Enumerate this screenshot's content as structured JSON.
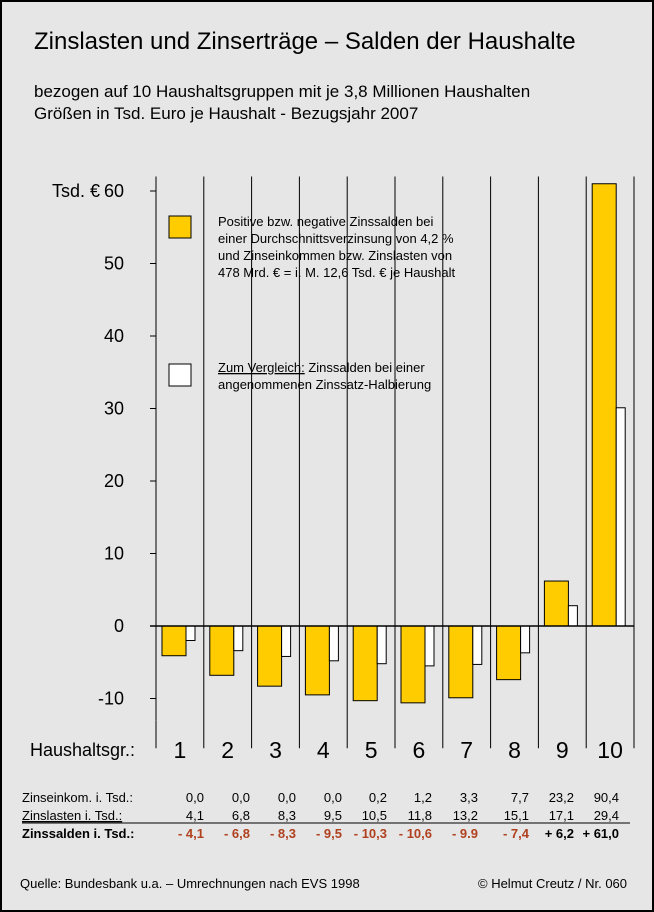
{
  "title": "Zinslasten und Zinserträge – Salden der Haushalte",
  "subtitle1": "bezogen auf 10 Haushaltsgruppen mit je 3,8 Millionen Haushalten",
  "subtitle2": "Größen in Tsd. Euro je Haushalt - Bezugsjahr 2007",
  "chart_data": {
    "type": "bar",
    "title": "Zinslasten und Zinserträge – Salden der Haushalte",
    "ylabel": "Tsd. €",
    "xlabel": "Haushaltsgr.:",
    "categories": [
      "1",
      "2",
      "3",
      "4",
      "5",
      "6",
      "7",
      "8",
      "9",
      "10"
    ],
    "ylim": [
      -13,
      62
    ],
    "yticks": [
      -10,
      0,
      10,
      20,
      30,
      40,
      50,
      60
    ],
    "ytick_labels": [
      "-10",
      "0",
      "10",
      "20",
      "30",
      "40",
      "50",
      "60"
    ],
    "series": [
      {
        "values": [
          -4.1,
          -6.8,
          -8.3,
          -9.5,
          -10.3,
          -10.6,
          -9.9,
          -7.4,
          6.2,
          61.0
        ],
        "color": "#ffcc00"
      },
      {
        "values": [
          -2.0,
          -3.4,
          -4.2,
          -4.8,
          -5.2,
          -5.5,
          -5.3,
          -3.7,
          2.8,
          30.1
        ],
        "color": "#ffffff"
      }
    ],
    "legend": [
      {
        "lines": [
          "Positive bzw. negative Zinssalden bei",
          "einer Durchschnittsverzinsung von 4,2 %",
          "und Zinseinkommen bzw. Zinslasten von",
          "478 Mrd. € = i. M. 12,6 Tsd. € je Haushalt"
        ]
      },
      {
        "underline": "Zum Vergleich:",
        "rest": " Zinssalden bei einer",
        "line2": "angenommenen Zinssatz-Halbierung"
      }
    ],
    "table": {
      "rows": [
        {
          "label": "Zinseinkom. i. Tsd.:",
          "values": [
            "0,0",
            "0,0",
            "0,0",
            "0,0",
            "0,2",
            "1,2",
            "3,3",
            "7,7",
            "23,2",
            "90,4"
          ]
        },
        {
          "label": "Zinslasten i. Tsd.:",
          "values": [
            "4,1",
            "6,8",
            "8,3",
            "9,5",
            "10,5",
            "11,8",
            "13,2",
            "15,1",
            "17,1",
            "29,4"
          ]
        },
        {
          "label": "Zinssalden i. Tsd.:",
          "values": [
            "- 4,1",
            "- 6,8",
            "- 8,3",
            "- 9,5",
            "- 10,3",
            "- 10,6",
            "- 9.9",
            "- 7,4",
            "+ 6,2",
            "+ 61,0"
          ]
        }
      ]
    }
  },
  "footer": {
    "source": "Quelle: Bundesbank u.a. – Umrechnungen nach EVS 1998",
    "copyright": "© Helmut Creutz / Nr. 060"
  },
  "colors": {
    "background": "#e6e6e6",
    "yellow_bar": "#ffcc00",
    "white_bar": "#ffffff",
    "negative_text": "#b0411e",
    "text": "#000000"
  }
}
